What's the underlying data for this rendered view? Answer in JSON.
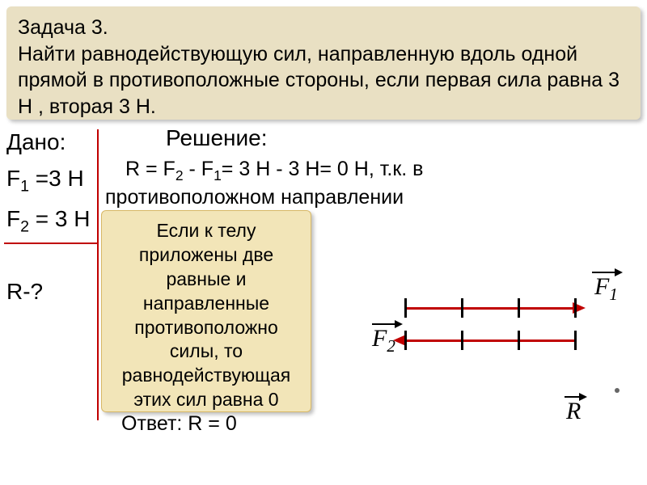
{
  "problem": {
    "title": "Задача 3.",
    "text": "Найти равнодействующую сил, направленную вдоль одной прямой в противоположные стороны, если первая сила равна 3 Н , вторая 3 Н.",
    "bg_color": "#e9e0c3"
  },
  "given": {
    "label": "Дано:",
    "f1_html": "F<sub>1</sub> =3 Н",
    "f2_html": "F<sub>2</sub> = 3 Н",
    "r": "R-?"
  },
  "solution": {
    "label": "Решение:",
    "line1_html": "R = F<sub>2</sub> - F<sub>1</sub>= 3 Н - 3 Н= 0 Н, т.к. в",
    "line2": "противоположном направлении"
  },
  "note": {
    "text": "Если к телу приложены две равные и направленные противоположно силы, то равнодействующая этих сил равна 0",
    "bg_color": "#f2e5b8"
  },
  "answer": {
    "text": "Ответ: R = 0"
  },
  "diagram": {
    "f1_label_html": "F<sub>1</sub>",
    "f2_label_html": "F<sub>2</sub>",
    "r_label": "R",
    "line_color": "#c00000",
    "tick_color": "#000000"
  },
  "divider_color": "#c00000"
}
